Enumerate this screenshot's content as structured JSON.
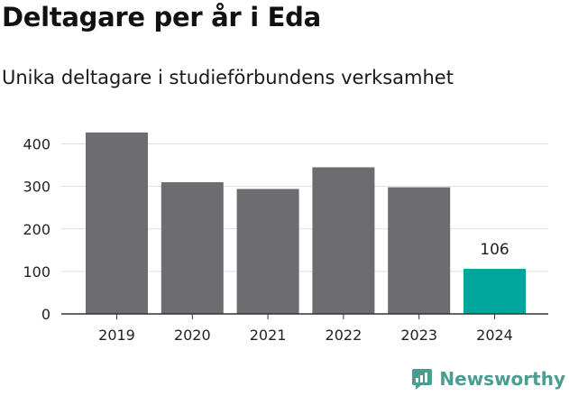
{
  "title": "Deltagare per år i Eda",
  "subtitle": "Unika deltagare i studieförbundens verksamhet",
  "brand": {
    "name": "Newsworthy",
    "icon": "newsworthy-logo-icon",
    "color": "#4a9d8f"
  },
  "colors": {
    "bar": "#6d6c70",
    "highlight": "#00a59b",
    "grid": "#dddddd",
    "axis": "#333333",
    "text": "#222222"
  },
  "chart_data": {
    "type": "bar",
    "categories": [
      "2019",
      "2020",
      "2021",
      "2022",
      "2023",
      "2024"
    ],
    "values": [
      427,
      310,
      294,
      345,
      298,
      106
    ],
    "highlight_index": 5,
    "data_labels": [
      {
        "category": "2024",
        "text": "106"
      }
    ],
    "title": "Deltagare per år i Eda",
    "subtitle": "Unika deltagare i studieförbundens verksamhet",
    "xlabel": "",
    "ylabel": "",
    "ylim": [
      0,
      450
    ],
    "yticks": [
      0,
      100,
      200,
      300,
      400
    ],
    "grid": true,
    "legend": "none"
  }
}
